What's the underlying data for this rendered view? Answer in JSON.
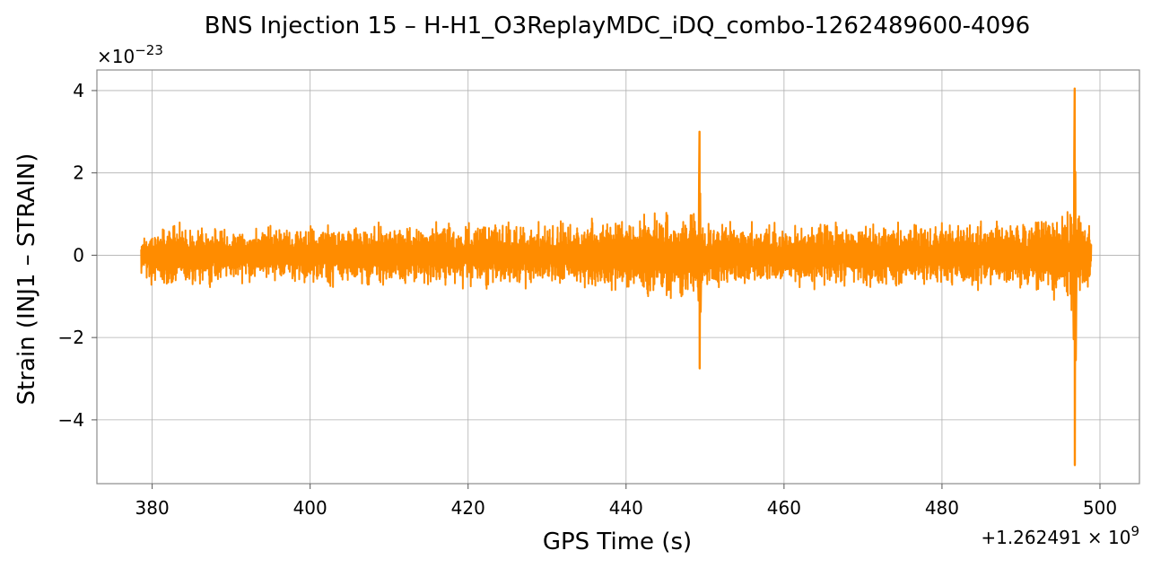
{
  "chart_data": {
    "type": "line",
    "title": "BNS Injection 15 – H-H1_O3ReplayMDC_iDQ_combo-1262489600-4096",
    "xlabel": "GPS Time (s)",
    "ylabel": "Strain (INJ1 – STRAIN)",
    "x_offset_label": "+1.262491 × 10^9",
    "y_scale_label": "×10^−23",
    "xlim": [
      373,
      505
    ],
    "ylim": [
      -5.55,
      4.5
    ],
    "x_ticks": [
      380,
      400,
      420,
      440,
      460,
      480,
      500
    ],
    "y_ticks": [
      -4,
      -2,
      0,
      2,
      4
    ],
    "y_tick_labels": [
      "−4",
      "−2",
      "0",
      "2",
      "4"
    ],
    "grid": true,
    "legend": "none",
    "series": [
      {
        "color": "#ff8c00",
        "x_range": [
          378.6,
          498.9
        ],
        "envelope": [
          {
            "x": 378.6,
            "y": 0.8
          },
          {
            "x": 380,
            "y": 1.1
          },
          {
            "x": 390,
            "y": 0.9
          },
          {
            "x": 400,
            "y": 1.0
          },
          {
            "x": 410,
            "y": 1.1
          },
          {
            "x": 420,
            "y": 1.1
          },
          {
            "x": 430,
            "y": 1.1
          },
          {
            "x": 440,
            "y": 1.3
          },
          {
            "x": 445,
            "y": 1.5
          },
          {
            "x": 448.5,
            "y": 1.5
          },
          {
            "x": 450,
            "y": 1.1
          },
          {
            "x": 460,
            "y": 1.1
          },
          {
            "x": 470,
            "y": 1.1
          },
          {
            "x": 480,
            "y": 1.1
          },
          {
            "x": 490,
            "y": 1.3
          },
          {
            "x": 495,
            "y": 1.5
          },
          {
            "x": 496.5,
            "y": 2.0
          },
          {
            "x": 498.9,
            "y": 0.8
          }
        ],
        "spikes": [
          {
            "x": 449.3,
            "y_max": 3.0,
            "y_min": -2.75
          },
          {
            "x": 496.8,
            "y_max": 4.05,
            "y_min": -5.1
          }
        ]
      }
    ]
  }
}
